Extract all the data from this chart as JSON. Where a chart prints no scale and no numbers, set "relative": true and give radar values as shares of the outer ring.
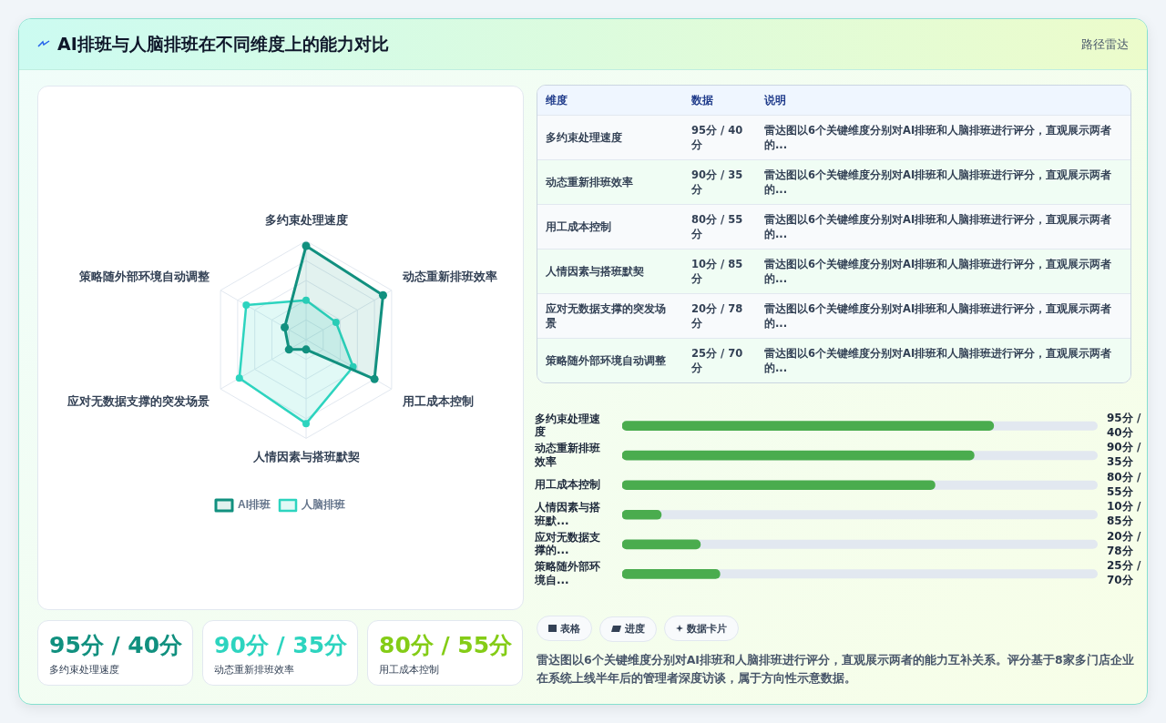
{
  "chart_data": [
    {
      "type": "other",
      "title": "AI排班与人脑排班在不同维度上的能力对比",
      "subtitle": "路径雷达"
    },
    {
      "type": "radar",
      "relative": true,
      "categories": [
        "多约束处理速度",
        "动态重新排班效率",
        "用工成本控制",
        "人情因素与搭班默契",
        "应对无数据支撑的突发场景",
        "策略随外部环境自动调整"
      ],
      "series": [
        {
          "name": "AI排班",
          "color": "#11907f",
          "values": [
            0.95,
            0.9,
            0.8,
            0.1,
            0.2,
            0.25
          ]
        },
        {
          "name": "人脑排班",
          "color": "#2dd4bf",
          "values": [
            0.4,
            0.35,
            0.55,
            0.85,
            0.78,
            0.7
          ]
        }
      ],
      "marker": "circle",
      "legend": "bottom",
      "annotations": [
        "雷达图以6个关键维度分别对AI排班和人脑排班进行评分，直观展示两者的能力互补关系。评分基于8家多门店企业在系统上线半年后的管理者深度访谈，属于方向性示意数据。"
      ]
    },
    {
      "type": "bar",
      "orientation": "horizontal",
      "categories": [
        "多约束处理速度",
        "动态重新排班效率",
        "用工成本控制",
        "人情因素与搭班默...",
        "应对无数据支撑的...",
        "策略随外部环境自..."
      ],
      "values": [
        95,
        90,
        80,
        10,
        20,
        25
      ],
      "color": "#4aac4e",
      "value_labels": [
        "95分 / 40分",
        "90分 / 35分",
        "80分 / 55分",
        "10分 / 85分",
        "20分 / 78分",
        "25分 / 70分"
      ]
    },
    {
      "type": "other",
      "annotations": [
        "维度",
        "数据",
        "说明",
        "多约束处理速度",
        "95分 / 40分",
        "雷达图以6个关键维度分别对AI排班和人脑排班进行评分，直观展示两者的...",
        "动态重新排班效率",
        "90分 / 35分",
        "雷达图以6个关键维度分别对AI排班和人脑排班进行评分，直观展示两者的...",
        "用工成本控制",
        "80分 / 55分",
        "雷达图以6个关键维度分别对AI排班和人脑排班进行评分，直观展示两者的...",
        "人情因素与搭班默契",
        "10分 / 85分",
        "雷达图以6个关键维度分别对AI排班和人脑排班进行评分，直观展示两者的...",
        "应对无数据支撑的突发场景",
        "20分 / 78分",
        "雷达图以6个关键维度分别对AI排班和人脑排班进行评分，直观展示两者的...",
        "策略随外部环境自动调整",
        "25分 / 70分",
        "雷达图以6个关键维度分别对AI排班和人脑排班进行评分，直观展示两者的..."
      ]
    },
    {
      "type": "other",
      "colors": [
        "#11907f",
        "#2dd4bf",
        "#84cc16"
      ],
      "annotations": [
        "95分 / 40分",
        "多约束处理速度",
        "90分 / 35分",
        "动态重新排班效率",
        "80分 / 55分",
        "用工成本控制"
      ]
    },
    {
      "type": "other",
      "annotations": [
        "表格",
        "进度",
        "数据卡片"
      ]
    }
  ]
}
